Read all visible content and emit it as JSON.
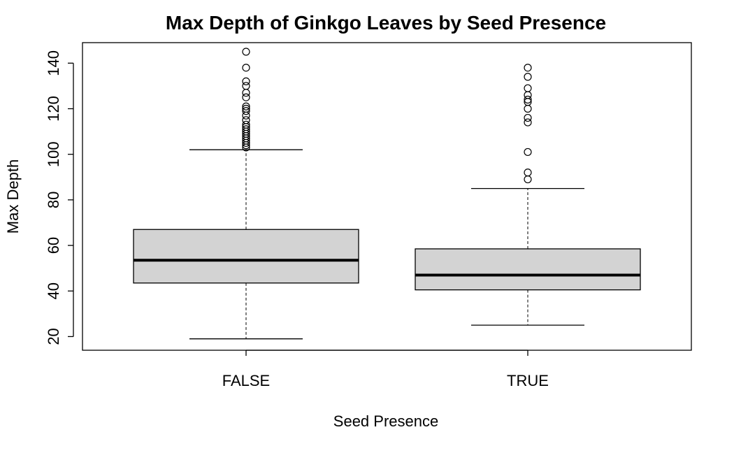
{
  "chart_data": {
    "type": "boxplot",
    "title": "Max Depth of Ginkgo Leaves by Seed Presence",
    "xlabel": "Seed Presence",
    "ylabel": "Max Depth",
    "ylim": [
      14,
      149
    ],
    "y_ticks": [
      20,
      40,
      60,
      80,
      100,
      120,
      140
    ],
    "grid": false,
    "categories": [
      "FALSE",
      "TRUE"
    ],
    "boxes": [
      {
        "category": "FALSE",
        "whisker_low": 19,
        "q1": 43.5,
        "median": 53.5,
        "q3": 67,
        "whisker_high": 102,
        "outliers": [
          103,
          104,
          105,
          106,
          107,
          108,
          109,
          110,
          111,
          112,
          113,
          115,
          117,
          119,
          120,
          121,
          125,
          127,
          130,
          132,
          138,
          145
        ]
      },
      {
        "category": "TRUE",
        "whisker_low": 25,
        "q1": 40.5,
        "median": 47,
        "q3": 58.5,
        "whisker_high": 85,
        "outliers": [
          89,
          92,
          101,
          114,
          116,
          120,
          123,
          124,
          126,
          129,
          134,
          138
        ]
      }
    ],
    "colors": {
      "box_fill": "#d3d3d3",
      "stroke": "#000000"
    }
  }
}
